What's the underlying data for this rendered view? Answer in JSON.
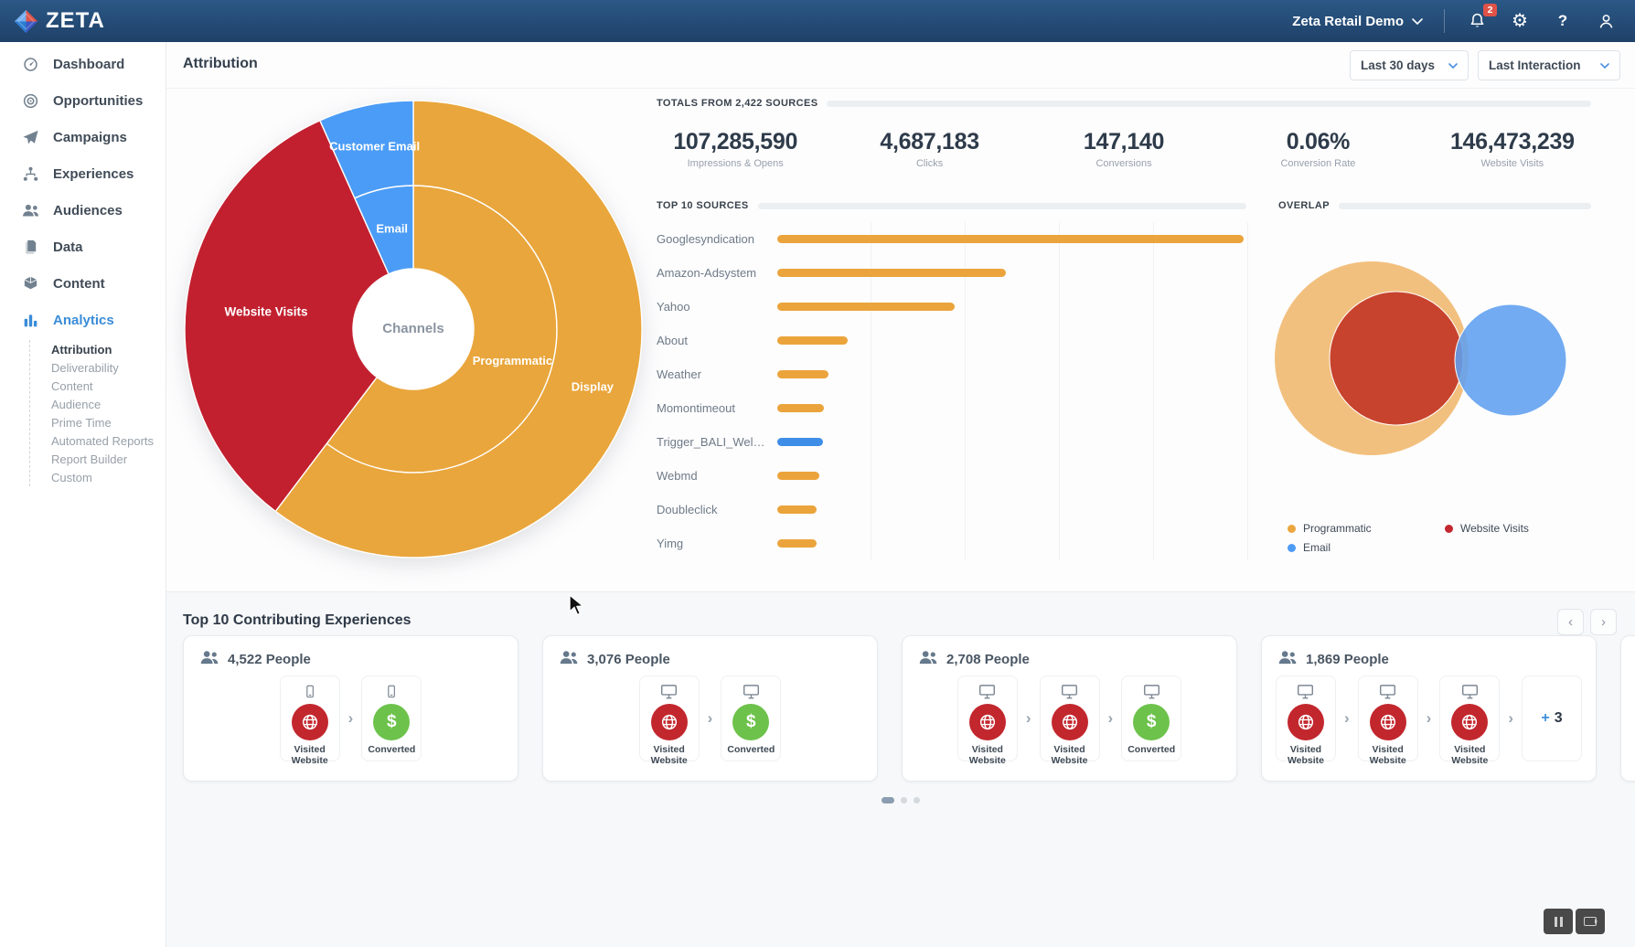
{
  "nav": {
    "brand": "ZETA",
    "account": "Zeta Retail Demo",
    "notifications_badge": "2"
  },
  "sidebar": {
    "items": [
      {
        "label": "Dashboard",
        "icon": "gauge"
      },
      {
        "label": "Opportunities",
        "icon": "target"
      },
      {
        "label": "Campaigns",
        "icon": "plane"
      },
      {
        "label": "Experiences",
        "icon": "flow"
      },
      {
        "label": "Audiences",
        "icon": "people"
      },
      {
        "label": "Data",
        "icon": "docs"
      },
      {
        "label": "Content",
        "icon": "cube"
      },
      {
        "label": "Analytics",
        "icon": "chart",
        "active": true
      }
    ],
    "analytics_children": [
      {
        "label": "Attribution",
        "active": true
      },
      {
        "label": "Deliverability"
      },
      {
        "label": "Content"
      },
      {
        "label": "Audience"
      },
      {
        "label": "Prime Time"
      },
      {
        "label": "Automated Reports"
      },
      {
        "label": "Report Builder"
      },
      {
        "label": "Custom"
      }
    ]
  },
  "header": {
    "title": "Attribution",
    "filters": [
      {
        "value": "Last 30 days"
      },
      {
        "value": "Last Interaction"
      }
    ]
  },
  "totals": {
    "heading": "TOTALS FROM 2,422 SOURCES",
    "stats": [
      {
        "value": "107,285,590",
        "label": "Impressions & Opens"
      },
      {
        "value": "4,687,183",
        "label": "Clicks"
      },
      {
        "value": "147,140",
        "label": "Conversions"
      },
      {
        "value": "0.06%",
        "label": "Conversion Rate"
      },
      {
        "value": "146,473,239",
        "label": "Website Visits"
      }
    ]
  },
  "sources": {
    "heading": "TOP 10 SOURCES"
  },
  "overlap": {
    "heading": "OVERLAP",
    "legend": [
      {
        "label": "Programmatic",
        "color": "#EBA63F"
      },
      {
        "label": "Website Visits",
        "color": "#C2282F"
      },
      {
        "label": "Email",
        "color": "#4D9BF5"
      }
    ]
  },
  "experiences": {
    "heading": "Top 10 Contributing Experiences",
    "cards": [
      {
        "people": "4,522 People",
        "device": "mobile",
        "steps": [
          {
            "type": "visited",
            "label": "Visited Website"
          },
          {
            "type": "converted",
            "label": "Converted"
          }
        ]
      },
      {
        "people": "3,076 People",
        "device": "desktop",
        "steps": [
          {
            "type": "visited",
            "label": "Visited Website"
          },
          {
            "type": "converted",
            "label": "Converted"
          }
        ]
      },
      {
        "people": "2,708 People",
        "device": "desktop",
        "steps": [
          {
            "type": "visited",
            "label": "Visited Website"
          },
          {
            "type": "visited",
            "label": "Visited Website"
          },
          {
            "type": "converted",
            "label": "Converted"
          }
        ]
      },
      {
        "people": "1,869 People",
        "device": "desktop",
        "steps": [
          {
            "type": "visited",
            "label": "Visited Website"
          },
          {
            "type": "visited",
            "label": "Visited Website"
          },
          {
            "type": "visited",
            "label": "Visited Website"
          }
        ],
        "more": "3"
      },
      {
        "people": "",
        "device": "desktop",
        "steps": [],
        "partial": true
      }
    ],
    "pagination_dots": 3
  },
  "chart_data": [
    {
      "type": "sunburst",
      "title": "Channels",
      "inner_ring": [
        {
          "label": "Programmatic",
          "percent": 60.3,
          "color": "#E9A63C"
        },
        {
          "label": "Website Visits",
          "percent": 33.0,
          "color": "#C2202F"
        },
        {
          "label": "Email",
          "percent": 6.7,
          "color": "#4B9CF6"
        }
      ],
      "outer_ring": [
        {
          "label": "Display",
          "percent": 60.3,
          "color": "#E9A63C"
        },
        {
          "label": "Website Visits",
          "percent": 33.0,
          "color": "#C2202F"
        },
        {
          "label": "Customer Email",
          "percent": 6.7,
          "color": "#4B9CF6"
        }
      ],
      "center_text_color": "#8a94a0"
    },
    {
      "type": "bar",
      "orientation": "horizontal",
      "title": "TOP 10 SOURCES",
      "categories": [
        "Googlesyndication",
        "Amazon-Adsystem",
        "Yahoo",
        "About",
        "Weather",
        "Momontimeout",
        "Trigger_BALI_Welcome_T...",
        "Webmd",
        "Doubleclick",
        "Yimg"
      ],
      "values": [
        100,
        49,
        38,
        15,
        11,
        10,
        9.8,
        9,
        8.4,
        8.4
      ],
      "unit": "relative share of largest source (axis unlabeled)",
      "colors": [
        "#EBA43C",
        "#EBA43C",
        "#EBA43C",
        "#EBA43C",
        "#EBA43C",
        "#EBA43C",
        "#3E8EE8",
        "#EBA43C",
        "#EBA43C",
        "#EBA43C"
      ],
      "grid": true,
      "legend_position": "none"
    },
    {
      "type": "venn",
      "title": "OVERLAP",
      "sets": [
        {
          "label": "Programmatic",
          "color": "#F2C07E",
          "relative_radius": 1.0
        },
        {
          "label": "Website Visits",
          "color": "#C8432E",
          "relative_radius": 0.69
        },
        {
          "label": "Email",
          "color": "#5F9FEF",
          "relative_radius": 0.58
        }
      ],
      "layout_hint": "Website Visits sits almost entirely inside Programmatic; Email overlaps both slightly on the right"
    }
  ]
}
